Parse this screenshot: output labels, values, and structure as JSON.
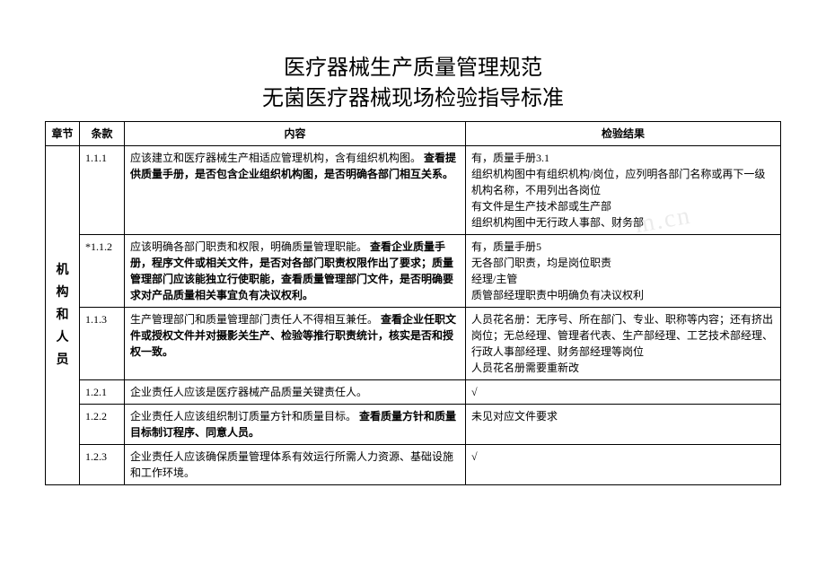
{
  "title": {
    "line1": "医疗器械生产质量管理规范",
    "line2": "无菌医疗器械现场检验指导标准"
  },
  "headers": {
    "chapter": "章节",
    "clause": "条款",
    "content": "内容",
    "result": "检验结果"
  },
  "chapter_label": [
    "机",
    "构",
    "和",
    "人",
    "员"
  ],
  "rows": [
    {
      "clause": "1.1.1",
      "content_plain": "应该建立和医疗器械生产相适应管理机构，含有组织机构图。",
      "content_bold": "查看提供质量手册，是否包含企业组织机构图，是否明确各部门相互关系。",
      "result": "有，质量手册3.1\n组织机构图中有组织机构/岗位，应列明各部门名称或再下一级机构名称，不用列出各岗位\n有文件是生产技术部或生产部\n组织机构图中无行政人事部、财务部"
    },
    {
      "clause": "*1.1.2",
      "content_plain": "应该明确各部门职责和权限，明确质量管理职能。",
      "content_bold": "查看企业质量手册，程序文件或相关文件，是否对各部门职责权限作出了要求；质量管理部门应该能独立行使职能，查看质量管理部门文件，是否明确要求对产品质量相关事宜负有决议权利。",
      "result": "有，质量手册5\n无各部门职责，均是岗位职责\n经理/主管\n质管部经理职责中明确负有决议权利"
    },
    {
      "clause": "1.1.3",
      "content_plain": "生产管理部门和质量管理部门责任人不得相互兼任。",
      "content_bold": "查看企业任职文件或授权文件并对摄影关生产、检验等推行职责统计，核实是否和授权一致。",
      "result": "人员花名册：无序号、所在部门、专业、职称等内容；还有挤出岗位；无总经理、管理者代表、生产部经理、工艺技术部经理、行政人事部经理、财务部经理等岗位\n人员花名册需要重新改"
    },
    {
      "clause": "1.2.1",
      "content_plain": "企业责任人应该是医疗器械产品质量关键责任人。",
      "content_bold": "",
      "result": "√"
    },
    {
      "clause": "1.2.2",
      "content_plain": "企业责任人应该组织制订质量方针和质量目标。",
      "content_bold": "查看质量方针和质量目标制订程序、同意人员。",
      "result": "未见对应文件要求"
    },
    {
      "clause": "1.2.3",
      "content_plain": "企业责任人应该确保质量管理体系有效运行所需人力资源、基础设施和工作环境。",
      "content_bold": "",
      "result": "√"
    }
  ],
  "watermark": "m.cn"
}
